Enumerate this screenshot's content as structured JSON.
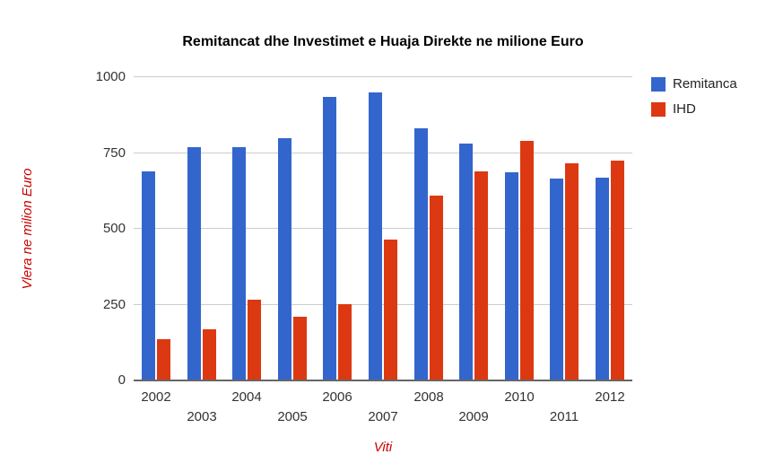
{
  "title": "Remitancat dhe Investimet e Huaja Direkte ne milione Euro",
  "chart_data": {
    "type": "bar",
    "title": "Remitancat dhe Investimet e Huaja Direkte ne milione Euro",
    "categories": [
      "2002",
      "2003",
      "2004",
      "2005",
      "2006",
      "2007",
      "2008",
      "2009",
      "2010",
      "2011",
      "2012"
    ],
    "series": [
      {
        "name": "Remitanca",
        "color": "#3366CC",
        "values": [
          690,
          770,
          770,
          800,
          935,
          950,
          830,
          780,
          685,
          665,
          670
        ]
      },
      {
        "name": "IHD",
        "color": "#DC3912",
        "values": [
          135,
          170,
          265,
          210,
          250,
          465,
          608,
          690,
          790,
          715,
          725
        ]
      }
    ],
    "xlabel": "Viti",
    "ylabel": "Vlera ne milion Euro",
    "ylim": [
      0,
      1000
    ],
    "yticks": [
      0,
      250,
      500,
      750,
      1000
    ],
    "grid": true,
    "legend_position": "right"
  },
  "colors": {
    "background": "#FFFFFF",
    "title_text": "#000000",
    "tick_label": "#333333",
    "axis_title": "#CC0000",
    "gridline": "#CCCCCC",
    "baseline": "#666666",
    "remitanca_blue": "#3366CC",
    "ihd_red": "#DC3912"
  }
}
